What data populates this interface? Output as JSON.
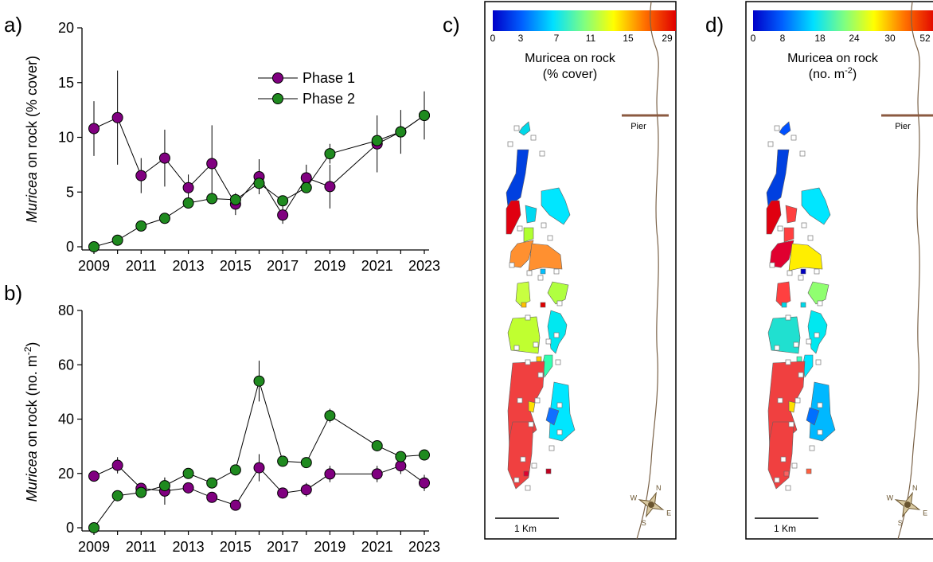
{
  "panel_labels": {
    "a": "a)",
    "b": "b)",
    "c": "c)",
    "d": "d)"
  },
  "colors": {
    "phase1": "#800080",
    "phase2": "#1f8a1f",
    "map_outline": "#7a6248"
  },
  "chart_data": [
    {
      "type": "line",
      "panel": "a",
      "ylabel_italic": "Muricea",
      "ylabel_rest": " on rock (% cover)",
      "ylim": [
        0,
        20
      ],
      "yticks": [
        0,
        5,
        10,
        15,
        20
      ],
      "xlim": [
        2009,
        2023
      ],
      "xticks": [
        2009,
        2011,
        2013,
        2015,
        2017,
        2019,
        2021,
        2023
      ],
      "legend_position": "top-right",
      "series": [
        {
          "name": "Phase 1",
          "color": "#800080",
          "x": [
            2009,
            2010,
            2011,
            2012,
            2013,
            2014,
            2015,
            2016,
            2017,
            2018,
            2019,
            2021,
            2022,
            2023
          ],
          "y": [
            10.8,
            11.8,
            6.5,
            8.1,
            5.4,
            7.6,
            3.9,
            6.4,
            2.9,
            6.3,
            5.5,
            9.4,
            10.5,
            12.0
          ],
          "err": [
            2.5,
            4.3,
            1.6,
            2.6,
            1.2,
            3.5,
            1.0,
            1.6,
            0.8,
            1.2,
            2.0,
            2.6,
            2.0,
            2.2
          ]
        },
        {
          "name": "Phase 2",
          "color": "#1f8a1f",
          "x": [
            2009,
            2010,
            2011,
            2012,
            2013,
            2014,
            2015,
            2016,
            2017,
            2018,
            2019,
            2021,
            2022,
            2023
          ],
          "y": [
            0,
            0.6,
            1.9,
            2.6,
            4.0,
            4.4,
            4.3,
            5.8,
            4.2,
            5.4,
            8.5,
            9.7,
            10.5,
            12.0
          ],
          "err": [
            0,
            0,
            0,
            0,
            0.4,
            0,
            0,
            0,
            0,
            0.4,
            0.9,
            0,
            0,
            0
          ]
        }
      ]
    },
    {
      "type": "line",
      "panel": "b",
      "ylabel_italic": "Muricea",
      "ylabel_rest": " on rock (no. m",
      "ylabel_sup": "-2",
      "ylabel_end": ")",
      "ylim": [
        0,
        80
      ],
      "yticks": [
        0,
        20,
        40,
        60,
        80
      ],
      "xlim": [
        2009,
        2023
      ],
      "xticks": [
        2009,
        2011,
        2013,
        2015,
        2017,
        2019,
        2021,
        2023
      ],
      "series": [
        {
          "name": "Phase 1",
          "color": "#800080",
          "x": [
            2009,
            2010,
            2011,
            2012,
            2013,
            2014,
            2015,
            2016,
            2017,
            2018,
            2019,
            2021,
            2022,
            2023
          ],
          "y": [
            19,
            23,
            14.5,
            13.5,
            14.7,
            11.2,
            8.3,
            22.1,
            12.8,
            14.0,
            19.8,
            19.8,
            22.8,
            16.5
          ],
          "err": [
            2,
            3,
            2,
            5,
            1.5,
            1.5,
            2,
            5,
            1.5,
            2.5,
            3,
            3,
            3,
            3
          ]
        },
        {
          "name": "Phase 2",
          "color": "#1f8a1f",
          "x": [
            2009,
            2010,
            2011,
            2012,
            2013,
            2014,
            2015,
            2016,
            2017,
            2018,
            2019,
            2021,
            2022,
            2023
          ],
          "y": [
            0,
            11.8,
            13.0,
            15.5,
            20.0,
            16.5,
            21.3,
            54.0,
            24.5,
            24.0,
            41.3,
            30.2,
            26.2,
            26.8
          ],
          "err": [
            0,
            0,
            0,
            3,
            1.5,
            0,
            0,
            7.5,
            0,
            0,
            2.5,
            0,
            0,
            0
          ]
        }
      ]
    },
    {
      "type": "heatmap",
      "panel": "c",
      "colorbar_ticks": [
        "0",
        "3",
        "7",
        "11",
        "15",
        "29"
      ],
      "colorbar_label_line1": "Muricea on rock",
      "colorbar_label_line2": "(% cover)",
      "pier_label": "Pier",
      "scale_label": "1 Km"
    },
    {
      "type": "heatmap",
      "panel": "d",
      "colorbar_ticks": [
        "0",
        "8",
        "18",
        "24",
        "30",
        "52"
      ],
      "colorbar_label_line1": "Muricea on rock",
      "colorbar_label_line2_pre": "(no. m",
      "colorbar_label_sup": "-2",
      "colorbar_label_line2_post": ")",
      "pier_label": "Pier",
      "scale_label": "1 Km"
    }
  ],
  "compass": {
    "n": "N",
    "e": "E",
    "s": "S",
    "w": "W"
  }
}
